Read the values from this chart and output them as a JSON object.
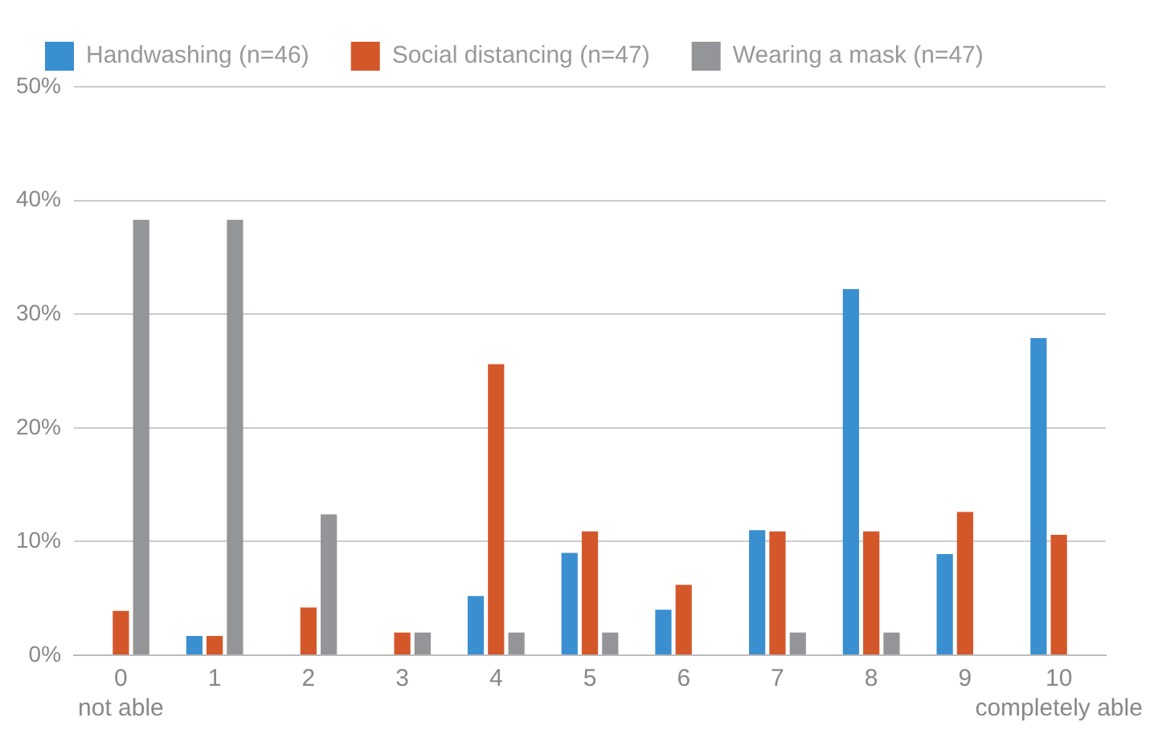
{
  "chart_data": {
    "type": "bar",
    "categories": [
      "0",
      "1",
      "2",
      "3",
      "4",
      "5",
      "6",
      "7",
      "8",
      "9",
      "10"
    ],
    "series": [
      {
        "name": "Handwashing (n=46)",
        "color": "#3a8fd0",
        "values": [
          0,
          1.7,
          0,
          0,
          5.2,
          9,
          4,
          11,
          32.2,
          8.9,
          27.9
        ]
      },
      {
        "name": "Social distancing (n=47)",
        "color": "#d4572a",
        "values": [
          3.9,
          1.7,
          4.2,
          2,
          25.6,
          10.9,
          6.2,
          10.9,
          10.9,
          12.6,
          10.6
        ]
      },
      {
        "name": "Wearing a mask (n=47)",
        "color": "#939598",
        "values": [
          38.3,
          38.3,
          12.4,
          2,
          2,
          2,
          0,
          2,
          2,
          0,
          0
        ]
      }
    ],
    "ylim": [
      0,
      50
    ],
    "yticks": [
      {
        "value": 0,
        "label": "0%"
      },
      {
        "value": 10,
        "label": "10%"
      },
      {
        "value": 20,
        "label": "20%"
      },
      {
        "value": 30,
        "label": "30%"
      },
      {
        "value": 40,
        "label": "40%"
      },
      {
        "value": 50,
        "label": "50%"
      }
    ],
    "grid": "y",
    "legend": "top left",
    "annotations": [
      "not able",
      "completely able"
    ]
  }
}
